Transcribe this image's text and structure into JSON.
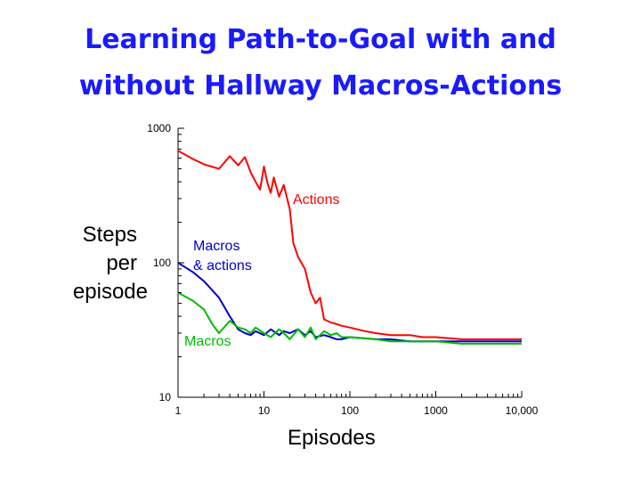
{
  "slide": {
    "title_line1": "Learning Path-to-Goal with and",
    "title_line2": "without Hallway Macros-Actions"
  },
  "chart_data": {
    "type": "line",
    "title": "Learning Path-to-Goal with and without Hallway Macros-Actions",
    "xlabel": "Episodes",
    "ylabel_lines": [
      "Steps",
      "per",
      "episode"
    ],
    "x_scale": "log",
    "y_scale": "log",
    "xlim": [
      1,
      10000
    ],
    "ylim": [
      10,
      1000
    ],
    "x_ticks": [
      1,
      10,
      100,
      1000,
      10000
    ],
    "x_tick_labels": [
      "1",
      "10",
      "100",
      "1000",
      "10,000"
    ],
    "y_ticks": [
      10,
      100,
      1000
    ],
    "y_tick_labels": [
      "10",
      "100",
      "1000"
    ],
    "grid": false,
    "series": [
      {
        "name": "Actions",
        "color": "#ff0000",
        "points": [
          [
            1,
            680
          ],
          [
            1.5,
            590
          ],
          [
            2,
            540
          ],
          [
            3,
            500
          ],
          [
            4,
            620
          ],
          [
            5,
            530
          ],
          [
            6,
            610
          ],
          [
            7,
            470
          ],
          [
            8,
            400
          ],
          [
            9,
            350
          ],
          [
            10,
            520
          ],
          [
            11,
            390
          ],
          [
            12,
            330
          ],
          [
            13,
            430
          ],
          [
            15,
            310
          ],
          [
            17,
            380
          ],
          [
            20,
            250
          ],
          [
            22,
            140
          ],
          [
            25,
            110
          ],
          [
            30,
            90
          ],
          [
            35,
            60
          ],
          [
            40,
            50
          ],
          [
            45,
            55
          ],
          [
            50,
            38
          ],
          [
            60,
            36
          ],
          [
            70,
            35
          ],
          [
            80,
            34
          ],
          [
            100,
            33
          ],
          [
            150,
            31
          ],
          [
            200,
            30
          ],
          [
            300,
            29
          ],
          [
            500,
            29
          ],
          [
            700,
            28
          ],
          [
            1000,
            28
          ],
          [
            2000,
            27
          ],
          [
            3000,
            27
          ],
          [
            5000,
            27
          ],
          [
            10000,
            27
          ]
        ],
        "label": "Actions"
      },
      {
        "name": "Macros & actions",
        "color": "#0000cc",
        "points": [
          [
            1,
            100
          ],
          [
            1.5,
            85
          ],
          [
            2,
            73
          ],
          [
            3,
            55
          ],
          [
            4,
            40
          ],
          [
            5,
            32
          ],
          [
            6,
            30
          ],
          [
            7,
            29
          ],
          [
            8,
            31
          ],
          [
            10,
            29
          ],
          [
            12,
            32
          ],
          [
            15,
            29
          ],
          [
            17,
            31
          ],
          [
            20,
            30
          ],
          [
            25,
            32
          ],
          [
            30,
            29
          ],
          [
            35,
            31
          ],
          [
            40,
            28
          ],
          [
            50,
            29
          ],
          [
            60,
            28
          ],
          [
            70,
            27
          ],
          [
            80,
            27
          ],
          [
            100,
            28
          ],
          [
            200,
            27
          ],
          [
            300,
            27
          ],
          [
            500,
            26
          ],
          [
            1000,
            26
          ],
          [
            2000,
            26
          ],
          [
            5000,
            26
          ],
          [
            10000,
            26
          ]
        ],
        "label_lines": [
          "Macros",
          "& actions"
        ]
      },
      {
        "name": "Macros",
        "color": "#00bb00",
        "points": [
          [
            1,
            60
          ],
          [
            1.5,
            52
          ],
          [
            2,
            45
          ],
          [
            2.5,
            35
          ],
          [
            3,
            30
          ],
          [
            4,
            37
          ],
          [
            5,
            33
          ],
          [
            6,
            32
          ],
          [
            7,
            30
          ],
          [
            8,
            33
          ],
          [
            10,
            30
          ],
          [
            12,
            28
          ],
          [
            15,
            32
          ],
          [
            17,
            30
          ],
          [
            20,
            27
          ],
          [
            25,
            32
          ],
          [
            30,
            28
          ],
          [
            35,
            33
          ],
          [
            40,
            27
          ],
          [
            50,
            31
          ],
          [
            60,
            29
          ],
          [
            70,
            30
          ],
          [
            80,
            28
          ],
          [
            100,
            28
          ],
          [
            200,
            27
          ],
          [
            300,
            26
          ],
          [
            500,
            26
          ],
          [
            1000,
            26
          ],
          [
            2000,
            25
          ],
          [
            5000,
            25
          ],
          [
            10000,
            25
          ]
        ],
        "label": "Macros"
      }
    ]
  }
}
